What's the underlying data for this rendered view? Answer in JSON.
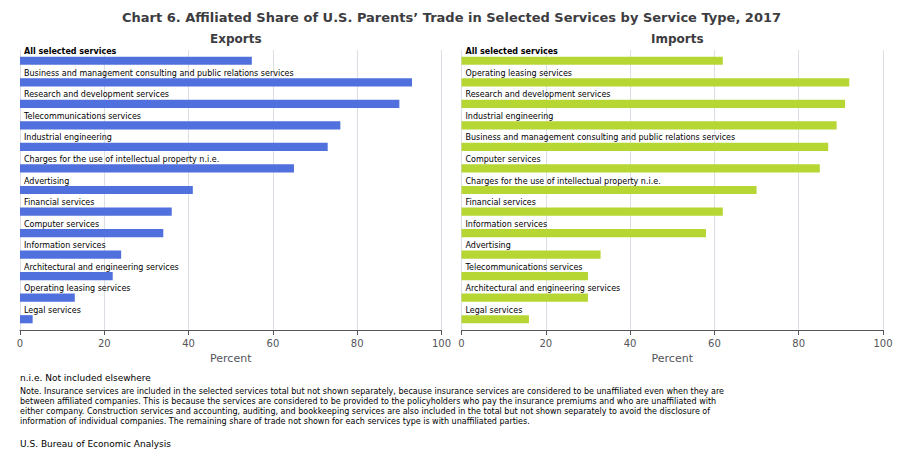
{
  "chart_data": [
    {
      "type": "bar",
      "title": "Chart 6. Affiliated Share of U.S. Parents’ Trade in Selected Services by Service Type, 2017",
      "subtitle": "Exports",
      "xlabel": "Percent",
      "orientation": "horizontal",
      "categories": [
        "All selected services",
        "Business and management consulting and public relations services",
        "Research and development services",
        "Telecommunications services",
        "Industrial engineering",
        "Charges for the use of intellectual property n.i.e.",
        "Advertising",
        "Financial services",
        "Computer services",
        "Information services",
        "Architectural and engineering services",
        "Operating leasing services",
        "Legal services"
      ],
      "values": [
        55,
        93,
        90,
        76,
        73,
        65,
        41,
        36,
        34,
        24,
        22,
        13,
        3
      ],
      "xlim": [
        0,
        100
      ],
      "xticks": [
        0,
        20,
        40,
        60,
        80,
        100
      ],
      "grid": true,
      "annotations": [
        "n.i.e. Not included elsewhere",
        "Note. Insurance services are included in the selected services total but not shown separately, because insurance services are considered to be unaffiliated even when they are between affiliated companies. This is because the services are considered to be provided to the policyholders who pay the insurance premiums and who are unaffiliated with either company. Construction services and accounting, auditing, and bookkeeping services are also included in the total but not shown separately to avoid the disclosure of information of individual companies. The remaining share of trade not shown for each services type is with unaffiliated parties.",
        "U.S. Bureau of Economic Analysis"
      ]
    },
    {
      "type": "bar",
      "subtitle": "Imports",
      "xlabel": "Percent",
      "orientation": "horizontal",
      "categories": [
        "All selected services",
        "Operating leasing services",
        "Research and development services",
        "Industrial engineering",
        "Business and management consulting and public relations services",
        "Computer services",
        "Charges for the use of intellectual property n.i.e.",
        "Financial services",
        "Information services",
        "Advertising",
        "Telecommunications services",
        "Architectural and engineering services",
        "Legal services"
      ],
      "values": [
        62,
        92,
        91,
        89,
        87,
        85,
        70,
        62,
        58,
        33,
        30,
        30,
        16
      ],
      "xlim": [
        0,
        100
      ],
      "xticks": [
        0,
        20,
        40,
        60,
        80,
        100
      ],
      "grid": true
    }
  ]
}
